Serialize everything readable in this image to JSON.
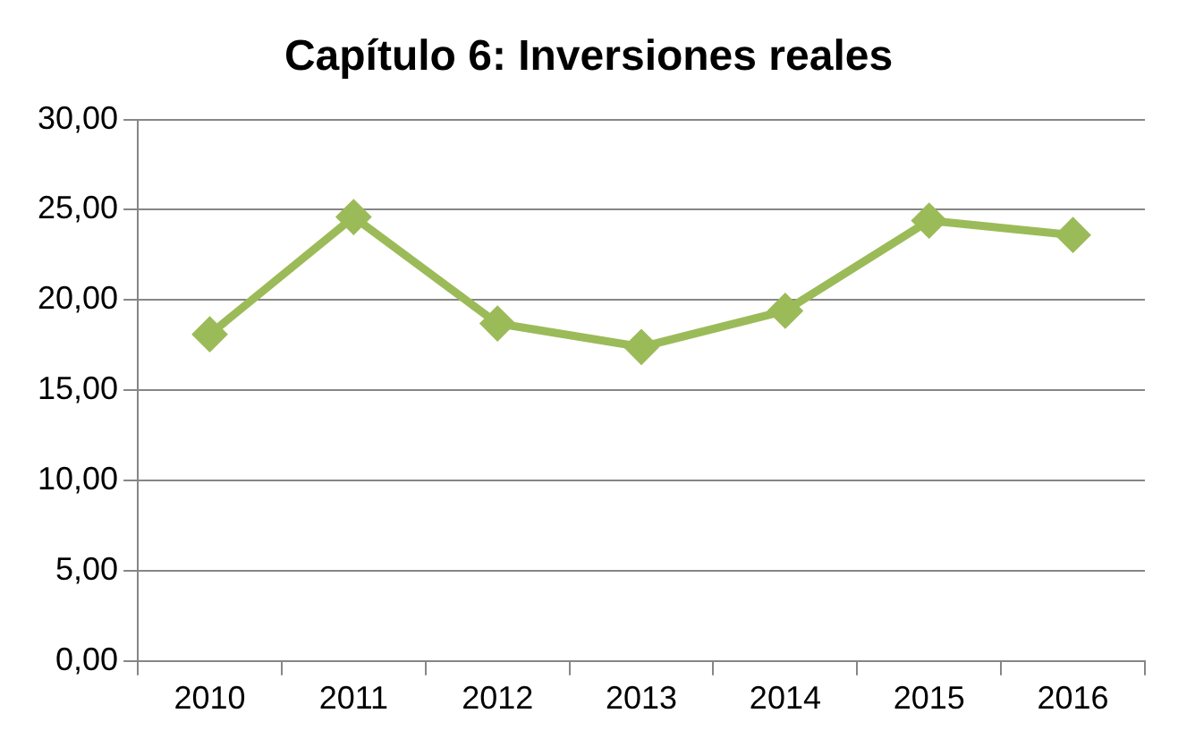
{
  "chart_data": {
    "type": "line",
    "title": "Capítulo 6: Inversiones reales",
    "categories": [
      "2010",
      "2011",
      "2012",
      "2013",
      "2014",
      "2015",
      "2016"
    ],
    "series": [
      {
        "color": "#9bbb59",
        "values": [
          18.1,
          24.6,
          18.7,
          17.4,
          19.4,
          24.4,
          23.6
        ]
      }
    ],
    "ylim": [
      0,
      30
    ],
    "yticks": [
      {
        "value": 0,
        "label": "0,00"
      },
      {
        "value": 5,
        "label": "5,00"
      },
      {
        "value": 10,
        "label": "10,00"
      },
      {
        "value": 15,
        "label": "15,00"
      },
      {
        "value": 20,
        "label": "20,00"
      },
      {
        "value": 25,
        "label": "25,00"
      },
      {
        "value": 30,
        "label": "30,00"
      }
    ],
    "grid": "y",
    "legend": false,
    "marker": "diamond",
    "line_style": "solid"
  }
}
